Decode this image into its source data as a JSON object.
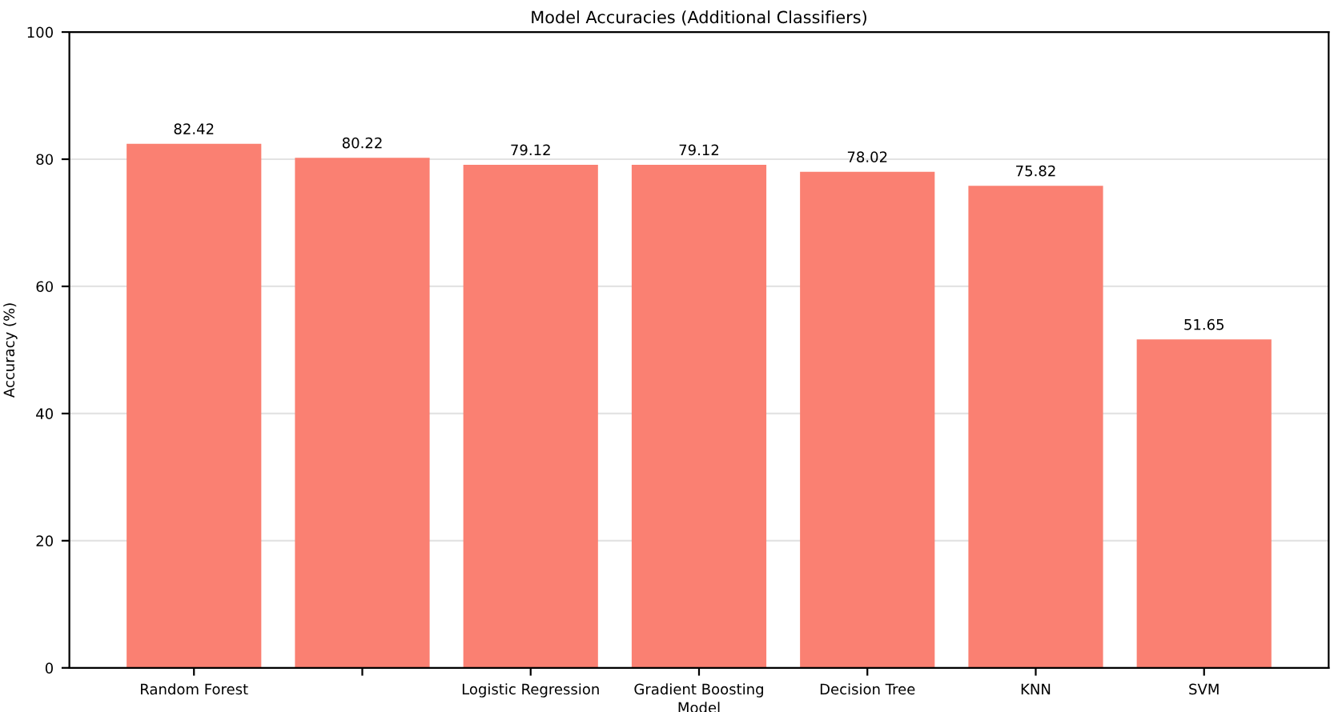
{
  "chart_data": {
    "type": "bar",
    "title": "Model Accuracies (Additional Classifiers)",
    "xlabel": "Model",
    "ylabel": "Accuracy (%)",
    "categories": [
      "Random Forest",
      null,
      "Logistic Regression",
      "Gradient Boosting",
      "Decision Tree",
      "KNN",
      "SVM"
    ],
    "values": [
      82.42,
      80.22,
      79.12,
      79.12,
      78.02,
      75.82,
      51.65
    ],
    "color": "#fa8072",
    "ylim": [
      0,
      100
    ],
    "yticks": [
      0,
      20,
      40,
      60,
      80,
      100
    ],
    "grid": "y",
    "data_labels": true
  }
}
